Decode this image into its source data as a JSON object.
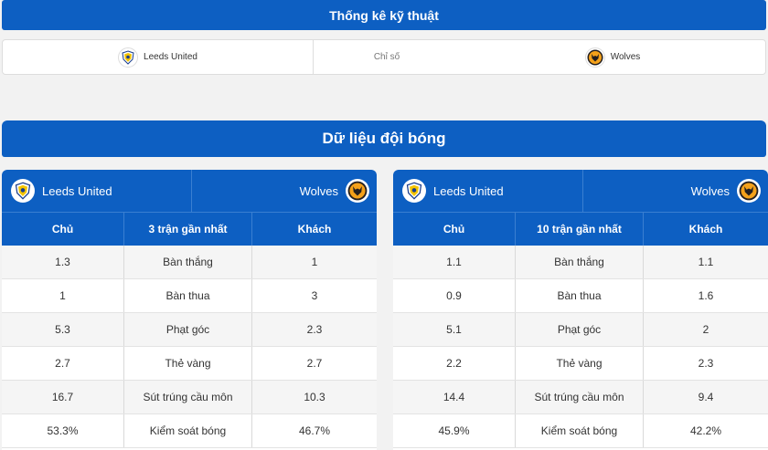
{
  "header": {
    "title": "Thống kê kỹ thuật"
  },
  "summary": {
    "home_team": "Leeds United",
    "middle_label": "Chỉ số",
    "away_team": "Wolves"
  },
  "section": {
    "title": "Dữ liệu đội bóng"
  },
  "panels": [
    {
      "home_team": "Leeds United",
      "away_team": "Wolves",
      "columns": {
        "home": "Chủ",
        "period": "3 trận gần nhất",
        "away": "Khách"
      },
      "rows": [
        {
          "home": "1.3",
          "label": "Bàn thắng",
          "away": "1"
        },
        {
          "home": "1",
          "label": "Bàn thua",
          "away": "3"
        },
        {
          "home": "5.3",
          "label": "Phạt góc",
          "away": "2.3"
        },
        {
          "home": "2.7",
          "label": "Thẻ vàng",
          "away": "2.7"
        },
        {
          "home": "16.7",
          "label": "Sút trúng cầu môn",
          "away": "10.3"
        },
        {
          "home": "53.3%",
          "label": "Kiểm soát bóng",
          "away": "46.7%"
        }
      ]
    },
    {
      "home_team": "Leeds United",
      "away_team": "Wolves",
      "columns": {
        "home": "Chủ",
        "period": "10 trận gần nhất",
        "away": "Khách"
      },
      "rows": [
        {
          "home": "1.1",
          "label": "Bàn thắng",
          "away": "1.1"
        },
        {
          "home": "0.9",
          "label": "Bàn thua",
          "away": "1.6"
        },
        {
          "home": "5.1",
          "label": "Phạt góc",
          "away": "2"
        },
        {
          "home": "2.2",
          "label": "Thẻ vàng",
          "away": "2.3"
        },
        {
          "home": "14.4",
          "label": "Sút trúng cầu môn",
          "away": "9.4"
        },
        {
          "home": "45.9%",
          "label": "Kiểm soát bóng",
          "away": "42.2%"
        }
      ]
    }
  ],
  "icons": {
    "home_logo": "leeds-crest-icon",
    "away_logo": "wolves-crest-icon"
  },
  "colors": {
    "primary": "#0d5fc2",
    "wolves_gold": "#f4a11a"
  }
}
